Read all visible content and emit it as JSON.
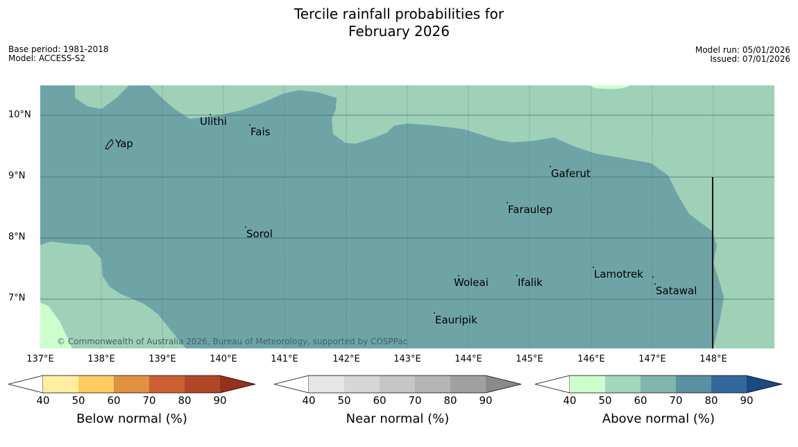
{
  "header": {
    "title_line1": "Tercile rainfall probabilities for",
    "title_line2": "February 2026",
    "base_period": "Base period: 1981-2018",
    "model": "Model: ACCESS-S2",
    "model_run": "Model run: 05/01/2026",
    "issued": "Issued: 07/01/2026"
  },
  "map": {
    "latitude_labels": [
      "10°N",
      "9°N",
      "8°N",
      "7°N"
    ],
    "longitude_labels": [
      "137°E",
      "138°E",
      "139°E",
      "140°E",
      "141°E",
      "142°E",
      "143°E",
      "144°E",
      "145°E",
      "146°E",
      "147°E",
      "148°E"
    ],
    "places": [
      "Yap",
      "Ulithi",
      "Fais",
      "Gaferut",
      "Faraulep",
      "Sorol",
      "Woleai",
      "Ifalik",
      "Lamotrek",
      "Satawal",
      "Eauripik"
    ],
    "copyright": "© Commonwealth of Australia 2026, Bureau of Meteorology, supported by COSPPac",
    "colors": {
      "prob_70_80": "#6fa4a7",
      "prob_60_70": "#9fd1b9",
      "prob_50_60": "#ccffcc",
      "grid": "#3d6b6d"
    }
  },
  "legend": {
    "below": {
      "label": "Below normal (%)",
      "ticks": [
        "40",
        "50",
        "60",
        "70",
        "80",
        "90"
      ],
      "colors": [
        "#ffffff",
        "#ffeda0",
        "#fecb60",
        "#e09040",
        "#cc6030",
        "#b04828",
        "#96301e"
      ]
    },
    "near": {
      "label": "Near normal (%)",
      "ticks": [
        "40",
        "50",
        "60",
        "70",
        "80",
        "90"
      ],
      "colors": [
        "#ffffff",
        "#e6e6e6",
        "#d6d6d6",
        "#c6c6c6",
        "#b4b4b4",
        "#a0a0a0",
        "#8a8a8a"
      ]
    },
    "above": {
      "label": "Above normal (%)",
      "ticks": [
        "40",
        "50",
        "60",
        "70",
        "80",
        "90"
      ],
      "colors": [
        "#ffffff",
        "#ccffcc",
        "#a3d7bd",
        "#80b5ad",
        "#5b90a0",
        "#33689c",
        "#1a4a80"
      ]
    }
  }
}
